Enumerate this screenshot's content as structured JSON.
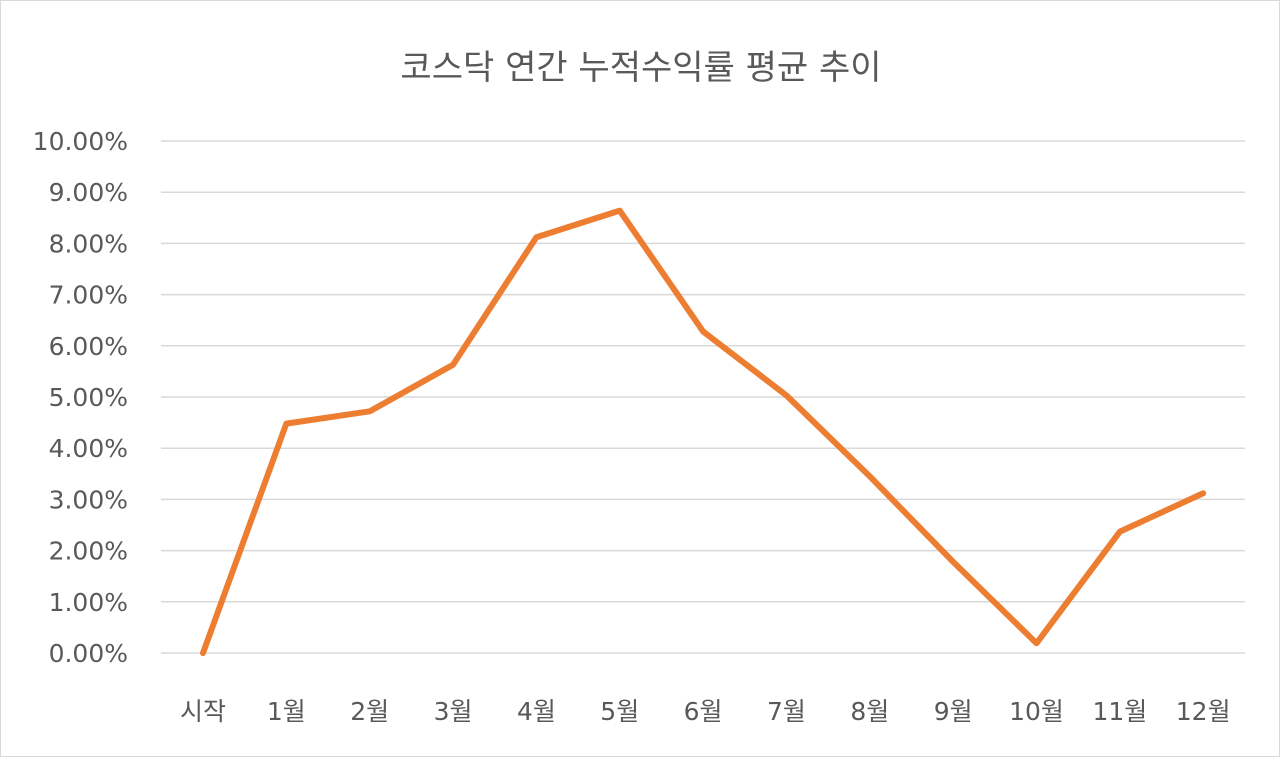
{
  "chart_data": {
    "type": "line",
    "title": "코스닥 연간 누적수익률 평균 추이",
    "xlabel": "",
    "ylabel": "",
    "categories": [
      "시작",
      "1월",
      "2월",
      "3월",
      "4월",
      "5월",
      "6월",
      "7월",
      "8월",
      "9월",
      "10월",
      "11월",
      "12월"
    ],
    "series": [
      {
        "name": "누적수익률 평균",
        "color": "#ed7d31",
        "values": [
          0.0,
          4.48,
          4.72,
          5.63,
          8.12,
          8.64,
          6.28,
          5.03,
          3.45,
          1.78,
          0.19,
          2.37,
          3.12
        ]
      }
    ],
    "ylim": [
      0,
      10
    ],
    "yticks": [
      "0.00%",
      "1.00%",
      "2.00%",
      "3.00%",
      "4.00%",
      "5.00%",
      "6.00%",
      "7.00%",
      "8.00%",
      "9.00%",
      "10.00%"
    ],
    "grid": true,
    "legend": "none"
  }
}
